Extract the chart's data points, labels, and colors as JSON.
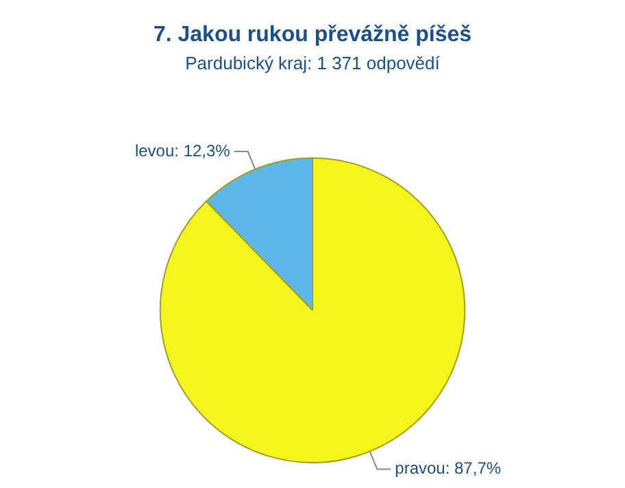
{
  "chart_data": {
    "type": "pie",
    "title": "7. Jakou rukou převážně píšeš",
    "subtitle": "Pardubický kraj: 1 371 odpovědí",
    "categories": [
      "levou",
      "pravou"
    ],
    "values": [
      12.3,
      87.7
    ],
    "value_labels": [
      "12,3%",
      "87,7%"
    ],
    "colors": [
      "#5db8ea",
      "#f5f51e"
    ],
    "legend": false
  }
}
